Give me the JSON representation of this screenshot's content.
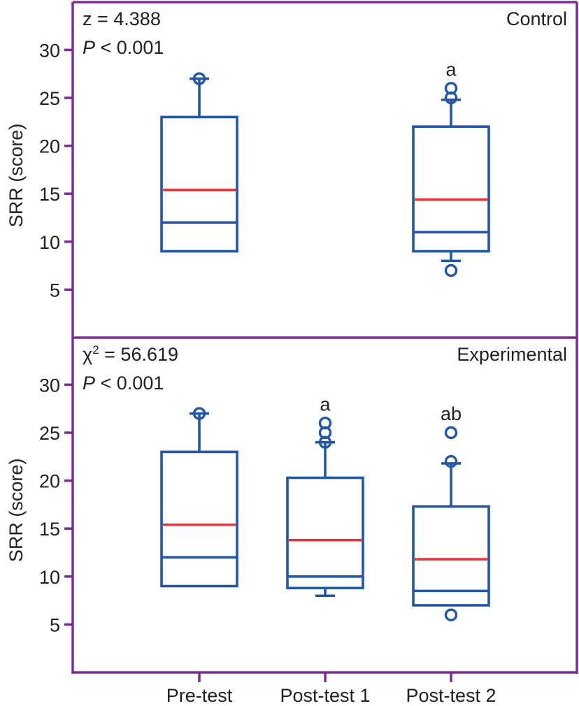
{
  "chart_data": {
    "type": "boxplot",
    "colors": {
      "frame": "#7B2D96",
      "box": "#2456A6",
      "mean_line": "#E8373A",
      "text": "#231f20"
    },
    "categories": [
      "Pre-test",
      "Post-test 1",
      "Post-test 2"
    ],
    "ylabel": "SRR (score)",
    "ylim": [
      0,
      33
    ],
    "yticks": [
      5,
      10,
      15,
      20,
      25,
      30
    ],
    "grid": false,
    "panels": [
      {
        "name": "Control",
        "label": "Control",
        "stat_line1_prefix": "z",
        "stat_line1_sup": "",
        "stat_line1_value": " = 4.388",
        "stat_line2_italic": "P",
        "stat_line2_rest": " < 0.001",
        "groups": [
          {
            "category": "Pre-test",
            "present": true,
            "q1": 9,
            "median": 12,
            "q3": 23,
            "mean": 15.4,
            "whisker_low": 9,
            "whisker_high": 27,
            "outliers": [
              27
            ],
            "sig": ""
          },
          {
            "category": "Post-test 1",
            "present": false
          },
          {
            "category": "Post-test 2",
            "present": true,
            "q1": 9,
            "median": 11,
            "q3": 22,
            "mean": 14.4,
            "whisker_low": 8,
            "whisker_high": 24.8,
            "outliers": [
              26,
              25,
              7
            ],
            "sig": "a"
          }
        ]
      },
      {
        "name": "Experimental",
        "label": "Experimental",
        "stat_line1_prefix": "χ",
        "stat_line1_sup": "2",
        "stat_line1_value": " = 56.619",
        "stat_line2_italic": "P",
        "stat_line2_rest": " < 0.001",
        "groups": [
          {
            "category": "Pre-test",
            "present": true,
            "q1": 9,
            "median": 12,
            "q3": 23,
            "mean": 15.4,
            "whisker_low": 9,
            "whisker_high": 27,
            "outliers": [
              27
            ],
            "sig": ""
          },
          {
            "category": "Post-test 1",
            "present": true,
            "q1": 8.8,
            "median": 10,
            "q3": 20.3,
            "mean": 13.8,
            "whisker_low": 8,
            "whisker_high": 24,
            "outliers": [
              26,
              25,
              24
            ],
            "sig": "a"
          },
          {
            "category": "Post-test 2",
            "present": true,
            "q1": 7,
            "median": 8.5,
            "q3": 17.3,
            "mean": 11.8,
            "whisker_low": 7,
            "whisker_high": 21.8,
            "outliers": [
              25,
              22,
              6
            ],
            "sig": "ab"
          }
        ]
      }
    ]
  }
}
